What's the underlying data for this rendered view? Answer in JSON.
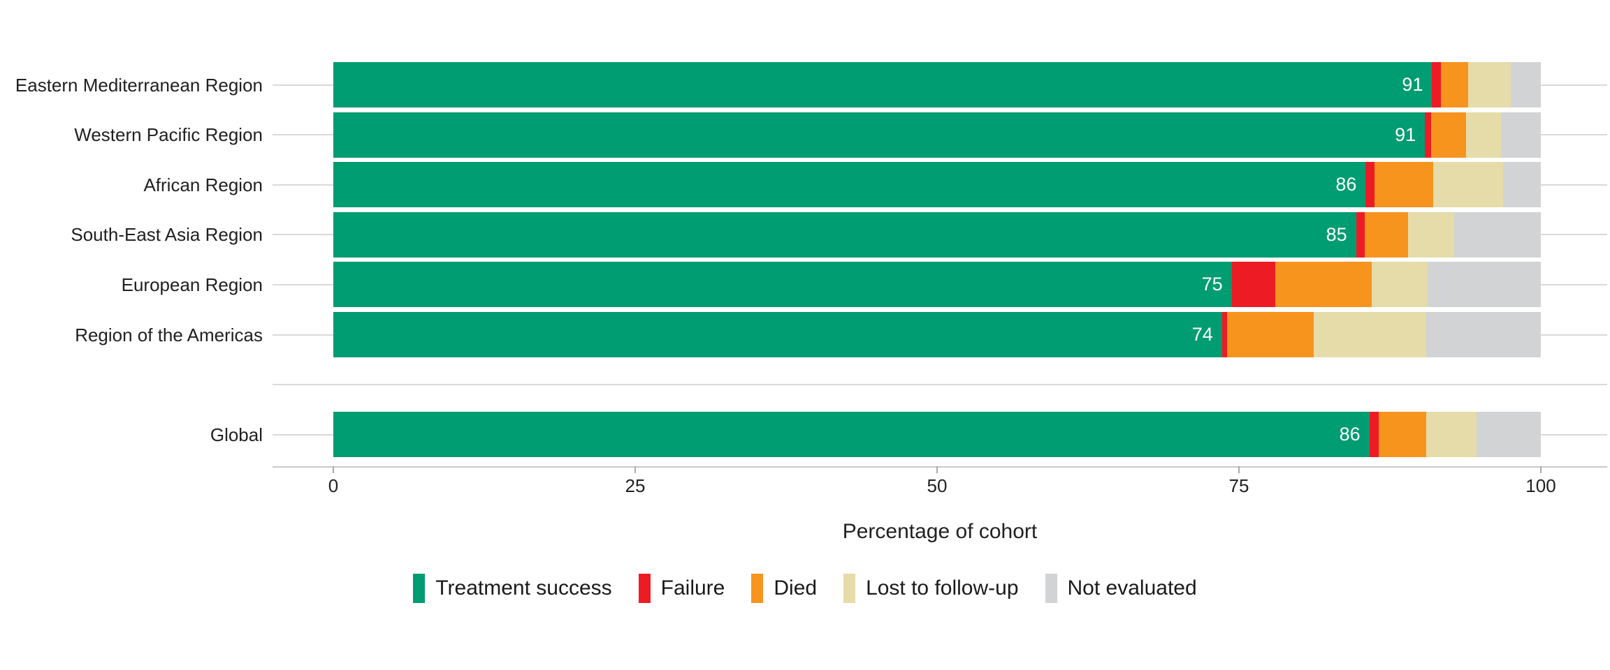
{
  "figure": {
    "title": "",
    "axis_title": "Percentage of cohort"
  },
  "chart_data": {
    "type": "bar",
    "orientation": "horizontal",
    "stacked": true,
    "unit": "percent of cohort",
    "xlabel": "Percentage of cohort",
    "xlim": [
      0,
      100
    ],
    "x_ticks": [
      "0",
      "25",
      "50",
      "75",
      "100"
    ],
    "grid": "light horizontal gridline per category row",
    "legend_position": "bottom-center",
    "categories": [
      "Eastern Mediterranean Region",
      "Western Pacific Region",
      "African Region",
      "South-East Asia Region",
      "European Region",
      "Region of the Americas",
      "Global"
    ],
    "spacer_before": "Global",
    "bar_value_labels": [
      "91",
      "91",
      "86",
      "85",
      "75",
      "74",
      "86"
    ],
    "series": [
      {
        "name": "Treatment success",
        "color": "#009C72",
        "values": [
          91.0,
          90.4,
          85.5,
          84.7,
          74.4,
          73.6,
          85.8
        ]
      },
      {
        "name": "Failure",
        "color": "#ED1C24",
        "values": [
          0.7,
          0.5,
          0.7,
          0.7,
          3.6,
          0.4,
          0.8
        ]
      },
      {
        "name": "Died",
        "color": "#F7941E",
        "values": [
          2.3,
          2.9,
          4.9,
          3.6,
          8.0,
          7.2,
          3.9
        ]
      },
      {
        "name": "Lost to follow-up",
        "color": "#E5DCA9",
        "values": [
          3.5,
          2.9,
          5.8,
          3.8,
          4.6,
          9.3,
          4.2
        ]
      },
      {
        "name": "Not evaluated",
        "color": "#D1D3D4",
        "values": [
          2.5,
          3.3,
          3.1,
          7.2,
          9.4,
          9.5,
          5.3
        ]
      }
    ]
  },
  "colors": {
    "background": "#FFFFFF",
    "gridline": "#D9D9D9",
    "axis_line": "#C8C8C8",
    "tick_mark": "#A9A9A9",
    "text": "#212121",
    "bar_value_label": "#FFFFFF"
  }
}
